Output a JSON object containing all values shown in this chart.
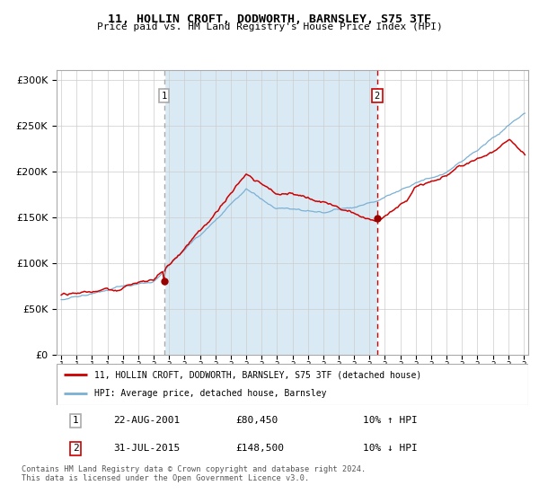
{
  "title": "11, HOLLIN CROFT, DODWORTH, BARNSLEY, S75 3TF",
  "subtitle": "Price paid vs. HM Land Registry's House Price Index (HPI)",
  "legend_label_red": "11, HOLLIN CROFT, DODWORTH, BARNSLEY, S75 3TF (detached house)",
  "legend_label_blue": "HPI: Average price, detached house, Barnsley",
  "marker1_date_idx": 80,
  "marker1_price": 80450,
  "marker1_date_str": "22-AUG-2001",
  "marker1_hpi_change": "10% ↑ HPI",
  "marker2_date_idx": 246,
  "marker2_price": 148500,
  "marker2_date_str": "31-JUL-2015",
  "marker2_hpi_change": "10% ↓ HPI",
  "vline1_color": "#aaaaaa",
  "vline2_color": "#cc0000",
  "red_line_color": "#cc0000",
  "blue_line_color": "#7ab0d4",
  "bg_shaded_color": "#daeaf5",
  "bg_white_color": "#ffffff",
  "marker_color": "#990000",
  "grid_color": "#cccccc",
  "ylim": [
    0,
    310000
  ],
  "start_year": 1995,
  "end_year": 2025,
  "n_months": 362,
  "footer_text": "Contains HM Land Registry data © Crown copyright and database right 2024.\nThis data is licensed under the Open Government Licence v3.0.",
  "table_row1": [
    "1",
    "22-AUG-2001",
    "£80,450",
    "10% ↑ HPI"
  ],
  "table_row2": [
    "2",
    "31-JUL-2015",
    "£148,500",
    "10% ↓ HPI"
  ]
}
